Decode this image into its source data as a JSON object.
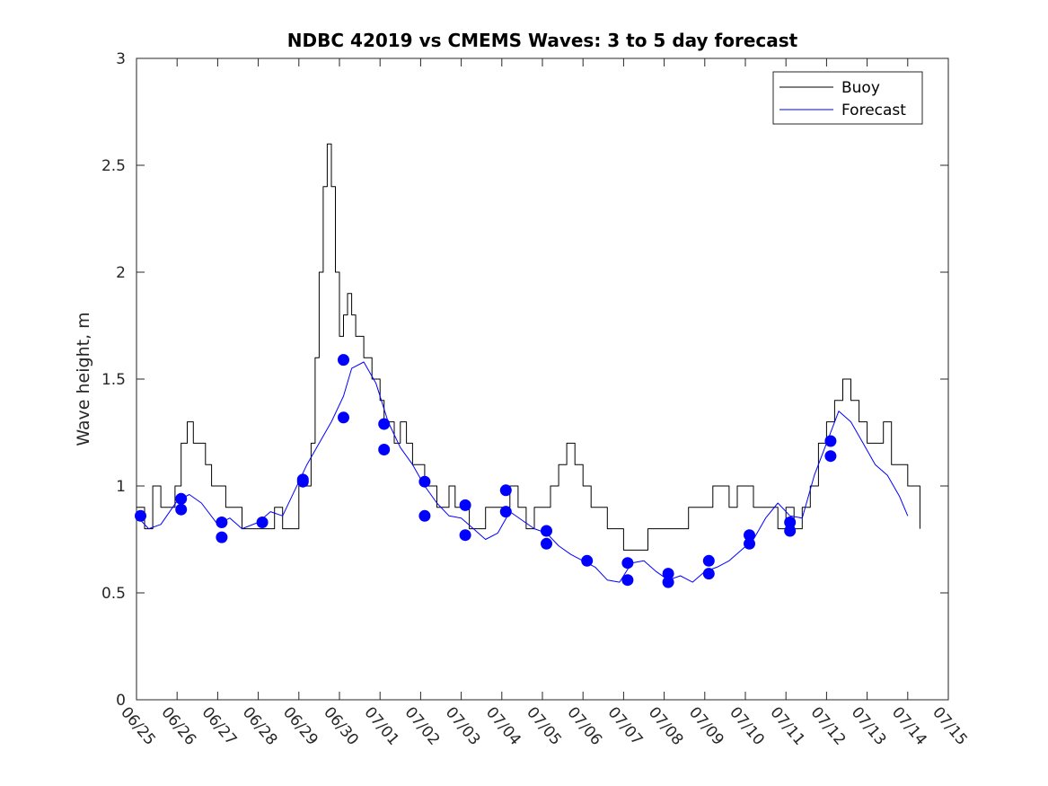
{
  "chart_data": {
    "type": "line",
    "title": "NDBC 42019 vs CMEMS Waves: 3 to 5 day forecast",
    "ylabel": "Wave height, m",
    "xlabel": "",
    "ylim": [
      0,
      3
    ],
    "yticks": [
      0,
      0.5,
      1,
      1.5,
      2,
      2.5,
      3
    ],
    "ytick_labels": [
      "0",
      "0.5",
      "1",
      "1.5",
      "2",
      "2.5",
      "3"
    ],
    "xlim": [
      0,
      20
    ],
    "xticks": [
      0,
      1,
      2,
      3,
      4,
      5,
      6,
      7,
      8,
      9,
      10,
      11,
      12,
      13,
      14,
      15,
      16,
      17,
      18,
      19,
      20
    ],
    "xtick_labels": [
      "06/25",
      "06/26",
      "06/27",
      "06/28",
      "06/29",
      "06/30",
      "07/01",
      "07/02",
      "07/03",
      "07/04",
      "07/05",
      "07/06",
      "07/07",
      "07/08",
      "07/09",
      "07/10",
      "07/11",
      "07/12",
      "07/13",
      "07/14",
      "07/15"
    ],
    "x_unit_note": "days from 06/25",
    "legend": {
      "position": "top-right",
      "entries": [
        "Buoy",
        "Forecast"
      ]
    },
    "colors": {
      "buoy": "#000000",
      "forecast": "#0000ff",
      "markers": "#0000ff"
    },
    "grid": false,
    "series": [
      {
        "name": "Buoy",
        "color": "#000000",
        "x": [
          0.0,
          0.2,
          0.4,
          0.6,
          0.8,
          0.95,
          1.1,
          1.25,
          1.4,
          1.55,
          1.7,
          1.85,
          2.0,
          2.2,
          2.4,
          2.6,
          2.8,
          3.0,
          3.2,
          3.4,
          3.6,
          3.8,
          4.0,
          4.1,
          4.2,
          4.3,
          4.4,
          4.5,
          4.6,
          4.7,
          4.8,
          4.9,
          5.0,
          5.1,
          5.2,
          5.3,
          5.4,
          5.5,
          5.6,
          5.7,
          5.8,
          5.9,
          6.0,
          6.1,
          6.2,
          6.35,
          6.5,
          6.65,
          6.8,
          6.95,
          7.1,
          7.25,
          7.4,
          7.55,
          7.7,
          7.85,
          8.0,
          8.2,
          8.4,
          8.6,
          8.8,
          9.0,
          9.2,
          9.4,
          9.6,
          9.8,
          10.0,
          10.2,
          10.4,
          10.6,
          10.8,
          11.0,
          11.2,
          11.4,
          11.6,
          11.8,
          12.0,
          12.2,
          12.4,
          12.6,
          12.8,
          13.0,
          13.2,
          13.4,
          13.6,
          13.8,
          14.0,
          14.2,
          14.4,
          14.6,
          14.8,
          15.0,
          15.2,
          15.4,
          15.6,
          15.8,
          16.0,
          16.2,
          16.4,
          16.6,
          16.8,
          17.0,
          17.2,
          17.4,
          17.6,
          17.8,
          18.0,
          18.2,
          18.4,
          18.6,
          18.8,
          19.0,
          19.1,
          19.3
        ],
        "y": [
          0.9,
          0.8,
          1.0,
          0.9,
          0.9,
          1.0,
          1.2,
          1.3,
          1.2,
          1.2,
          1.1,
          1.0,
          1.0,
          0.9,
          0.9,
          0.8,
          0.8,
          0.8,
          0.8,
          0.9,
          0.8,
          0.8,
          1.0,
          1.0,
          1.0,
          1.2,
          1.6,
          2.0,
          2.4,
          2.6,
          2.4,
          2.0,
          1.7,
          1.8,
          1.9,
          1.8,
          1.7,
          1.7,
          1.6,
          1.6,
          1.5,
          1.5,
          1.4,
          1.3,
          1.3,
          1.2,
          1.3,
          1.2,
          1.1,
          1.1,
          1.0,
          1.0,
          0.9,
          0.9,
          1.0,
          0.9,
          0.9,
          0.8,
          0.8,
          0.9,
          0.9,
          0.9,
          1.0,
          0.9,
          0.8,
          0.9,
          0.9,
          1.0,
          1.1,
          1.2,
          1.1,
          1.0,
          0.9,
          0.9,
          0.8,
          0.8,
          0.7,
          0.7,
          0.7,
          0.8,
          0.8,
          0.8,
          0.8,
          0.8,
          0.9,
          0.9,
          0.9,
          1.0,
          1.0,
          0.9,
          1.0,
          1.0,
          0.9,
          0.9,
          0.9,
          0.8,
          0.9,
          0.8,
          0.9,
          1.0,
          1.2,
          1.3,
          1.4,
          1.5,
          1.4,
          1.3,
          1.2,
          1.2,
          1.3,
          1.1,
          1.1,
          1.0,
          1.0,
          0.8
        ]
      },
      {
        "name": "Forecast",
        "color": "#0000ff",
        "x": [
          0.0,
          0.3,
          0.6,
          1.0,
          1.3,
          1.6,
          2.0,
          2.3,
          2.6,
          3.0,
          3.3,
          3.6,
          4.0,
          4.2,
          4.5,
          4.8,
          5.1,
          5.3,
          5.6,
          5.9,
          6.2,
          6.5,
          6.8,
          7.1,
          7.4,
          7.7,
          8.0,
          8.3,
          8.6,
          8.9,
          9.2,
          9.5,
          9.8,
          10.1,
          10.4,
          10.7,
          11.0,
          11.3,
          11.6,
          11.9,
          12.2,
          12.5,
          12.8,
          13.1,
          13.4,
          13.7,
          14.0,
          14.3,
          14.6,
          14.9,
          15.2,
          15.5,
          15.8,
          16.1,
          16.4,
          16.7,
          17.0,
          17.3,
          17.6,
          17.9,
          18.2,
          18.5,
          18.8,
          19.0
        ],
        "y": [
          0.86,
          0.8,
          0.82,
          0.93,
          0.96,
          0.92,
          0.82,
          0.85,
          0.8,
          0.83,
          0.88,
          0.86,
          1.02,
          1.1,
          1.2,
          1.3,
          1.42,
          1.55,
          1.58,
          1.48,
          1.3,
          1.18,
          1.1,
          1.0,
          0.92,
          0.86,
          0.85,
          0.8,
          0.75,
          0.78,
          0.88,
          0.84,
          0.8,
          0.78,
          0.72,
          0.68,
          0.65,
          0.62,
          0.56,
          0.55,
          0.64,
          0.65,
          0.6,
          0.56,
          0.58,
          0.55,
          0.6,
          0.62,
          0.65,
          0.7,
          0.75,
          0.85,
          0.92,
          0.86,
          0.85,
          1.05,
          1.2,
          1.35,
          1.3,
          1.2,
          1.1,
          1.05,
          0.95,
          0.86
        ]
      }
    ],
    "markers": {
      "name": "Forecast",
      "x": [
        0.1,
        1.1,
        1.1,
        2.1,
        2.1,
        3.1,
        4.1,
        4.1,
        5.1,
        5.1,
        6.1,
        6.1,
        7.1,
        7.1,
        8.1,
        8.1,
        9.1,
        9.1,
        10.1,
        10.1,
        11.1,
        12.1,
        12.1,
        13.1,
        13.1,
        14.1,
        14.1,
        15.1,
        15.1,
        16.1,
        16.1,
        17.1,
        17.1
      ],
      "y": [
        0.86,
        0.94,
        0.89,
        0.83,
        0.76,
        0.83,
        1.03,
        1.02,
        1.59,
        1.32,
        1.29,
        1.17,
        1.02,
        0.86,
        0.91,
        0.77,
        0.98,
        0.88,
        0.79,
        0.73,
        0.65,
        0.64,
        0.56,
        0.59,
        0.55,
        0.65,
        0.59,
        0.77,
        0.73,
        0.83,
        0.79,
        1.21,
        1.14
      ]
    }
  }
}
